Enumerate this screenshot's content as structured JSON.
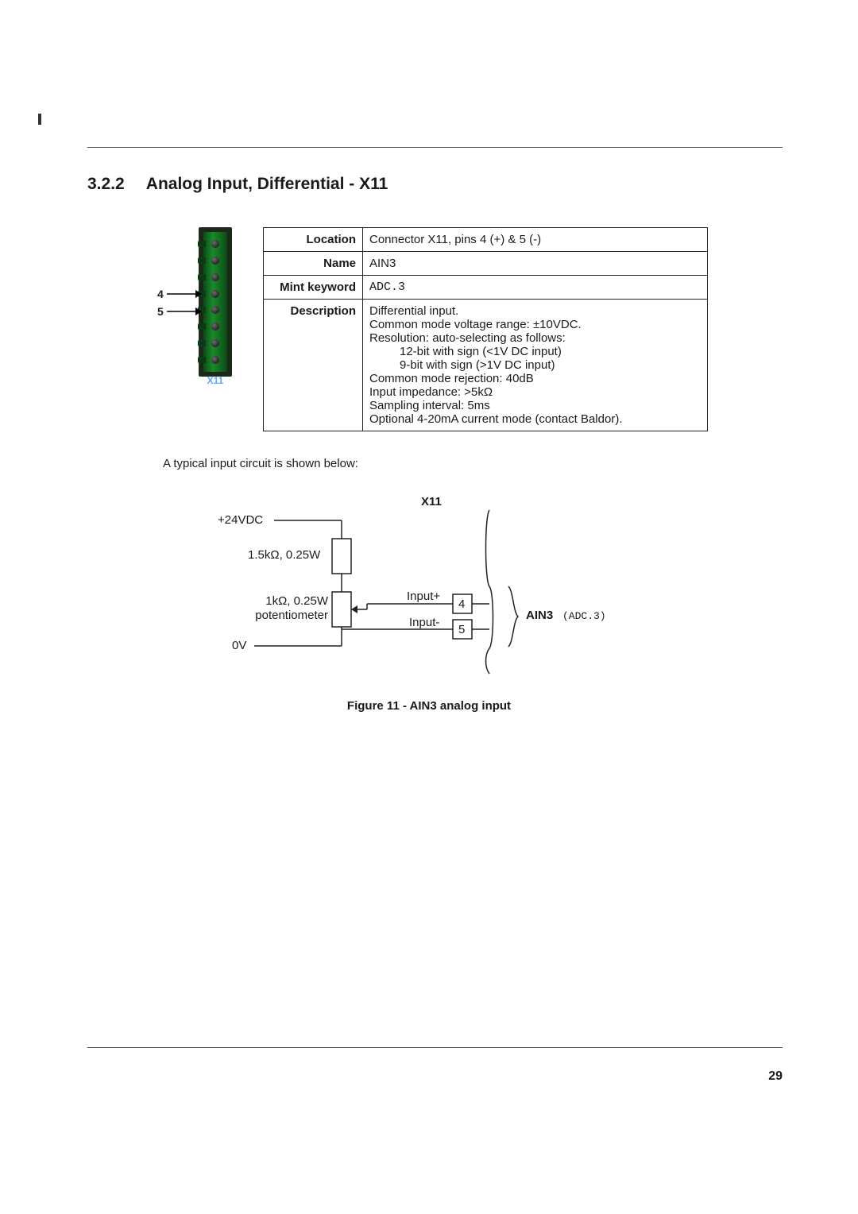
{
  "page_number": "29",
  "revbar_present": true,
  "heading": {
    "number": "3.2.2",
    "title": "Analog Input, Differential - X11"
  },
  "connector": {
    "label": "X11",
    "callouts": [
      {
        "num": "4",
        "pin_index": 3
      },
      {
        "num": "5",
        "pin_index": 4
      }
    ],
    "pin_count": 8
  },
  "table": {
    "rows": [
      {
        "label": "Location",
        "value": "Connector X11, pins 4 (+) & 5 (-)"
      },
      {
        "label": "Name",
        "value": "AIN3"
      },
      {
        "label": "Mint keyword",
        "value": "ADC.3",
        "mono": true
      },
      {
        "label": "Description",
        "value_lines": [
          "Differential input.",
          "Common mode voltage range: ±10VDC.",
          "Resolution: auto-selecting as follows:",
          {
            "indent": true,
            "text": "12-bit with sign (<1V DC input)"
          },
          {
            "indent": true,
            "text": "9-bit with sign (>1V DC input)"
          },
          "Common mode rejection: 40dB",
          "Input impedance: >5kΩ",
          "Sampling interval: 5ms",
          "Optional 4-20mA current mode (contact Baldor)."
        ]
      }
    ]
  },
  "caption_below_table": "A typical input circuit is shown below:",
  "circuit": {
    "title": "X11",
    "left_labels": {
      "v24": "+24VDC",
      "r1": "1.5kΩ, 0.25W",
      "r2a": "1kΩ, 0.25W",
      "r2b": "potentiometer",
      "gnd": "0V"
    },
    "signal_labels": {
      "in_pos": "Input+",
      "in_neg": "Input-",
      "pin_pos": "4",
      "pin_neg": "5"
    },
    "right_label_bold": "AIN3",
    "right_label_mono": "(ADC.3)"
  },
  "figure_caption": "Figure 11 - AIN3 analog input",
  "colors": {
    "text": "#1a1a1a",
    "rule": "#555555",
    "connector_label": "#5aa6ff",
    "connector_body_dark": "#1b2a18",
    "connector_body_green": "#198a2b"
  }
}
